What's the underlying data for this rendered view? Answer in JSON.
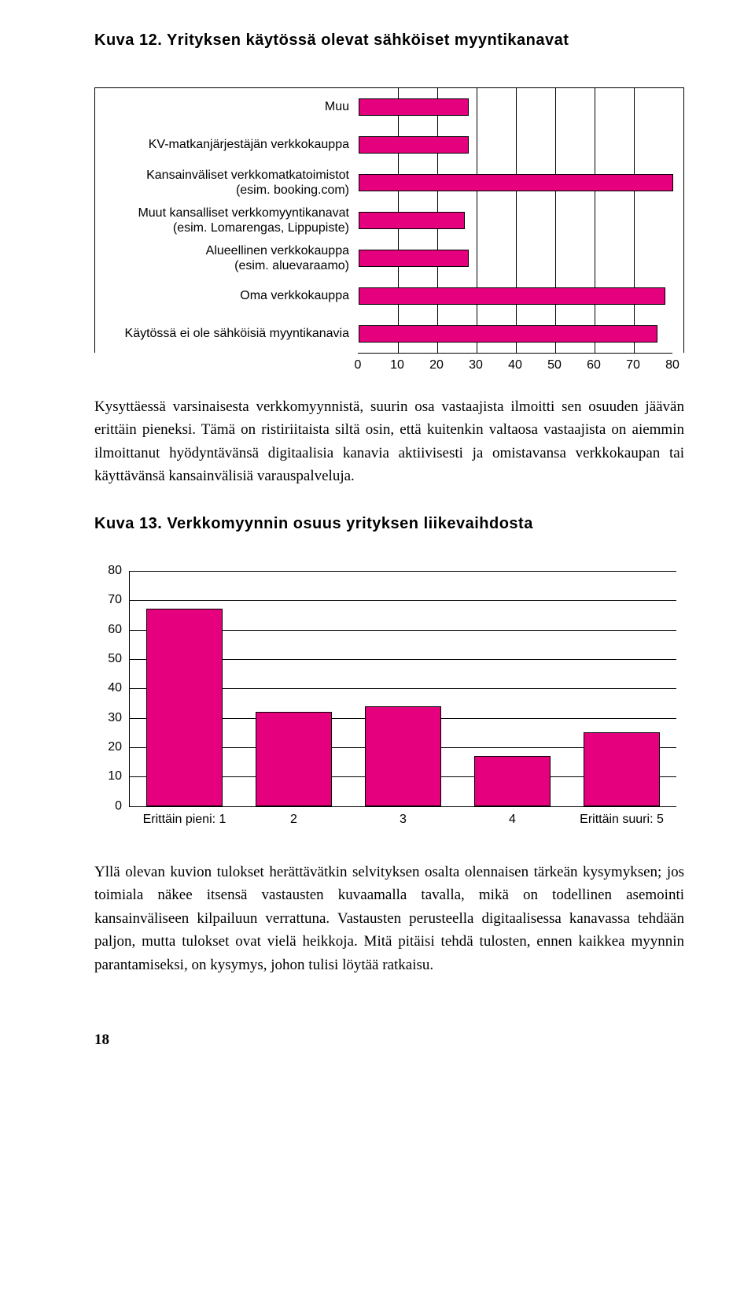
{
  "chart1": {
    "title_prefix": "Kuva 12.",
    "title_rest": " Yrityksen käytössä olevat sähköiset myyntikanavat",
    "type": "horizontal-bar",
    "bar_color": "#e5007d",
    "border_color": "#000000",
    "background_color": "#ffffff",
    "xlim": [
      0,
      80
    ],
    "xtick_step": 10,
    "xticks": [
      "0",
      "10",
      "20",
      "30",
      "40",
      "50",
      "60",
      "70",
      "80"
    ],
    "label_fontsize": 16,
    "title_fontsize": 20,
    "categories": [
      "Muu",
      "KV-matkanjärjestäjän verkkokauppa",
      "Kansainväliset verkkomatkatoimistot (esim. booking.com)",
      "Muut kansalliset verkkomyyntikanavat (esim. Lomarengas, Lippupiste)",
      "Alueellinen verkkokauppa (esim. aluevaraamo)",
      "Oma verkkokauppa",
      "Käytössä ei ole sähköisiä myyntikanavia"
    ],
    "values": [
      28,
      28,
      80,
      27,
      28,
      78,
      76
    ]
  },
  "paragraph1": "Kysyttäessä varsinaisesta verkkomyynnistä, suurin osa vastaajista ilmoitti sen osuuden jäävän erittäin pieneksi. Tämä on ristiriitaista siltä osin, että kuitenkin valtaosa vastaajista on aiemmin ilmoittanut hyödyntävänsä digitaalisia kanavia aktiivisesti ja omistavansa verkkokaupan tai käyttävänsä kansainvälisiä varauspalveluja.",
  "chart2": {
    "title_prefix": "Kuva 13.",
    "title_rest": " Verkkomyynnin osuus yrityksen liikevaihdosta",
    "type": "vertical-bar",
    "bar_color": "#e5007d",
    "border_color": "#000000",
    "background_color": "#ffffff",
    "ylim": [
      0,
      80
    ],
    "ytick_step": 10,
    "yticks": [
      "0",
      "10",
      "20",
      "30",
      "40",
      "50",
      "60",
      "70",
      "80"
    ],
    "label_fontsize": 16,
    "title_fontsize": 20,
    "bar_width_pct": 14,
    "categories": [
      "Erittäin pieni: 1",
      "2",
      "3",
      "4",
      "Erittäin suuri: 5"
    ],
    "values": [
      67,
      32,
      34,
      17,
      25
    ]
  },
  "paragraph2": "Yllä olevan kuvion tulokset herättävätkin selvityksen osalta olennaisen tärkeän kysymyksen; jos toimiala näkee itsensä vastausten kuvaamalla tavalla, mikä on todellinen asemointi kansainväliseen kilpailuun verrattuna. Vastausten perusteella digitaalisessa kanavassa tehdään paljon, mutta tulokset ovat vielä heikkoja. Mitä pitäisi tehdä tulosten, ennen kaikkea myynnin parantamiseksi, on kysymys, johon tulisi löytää ratkaisu.",
  "page_number": "18"
}
